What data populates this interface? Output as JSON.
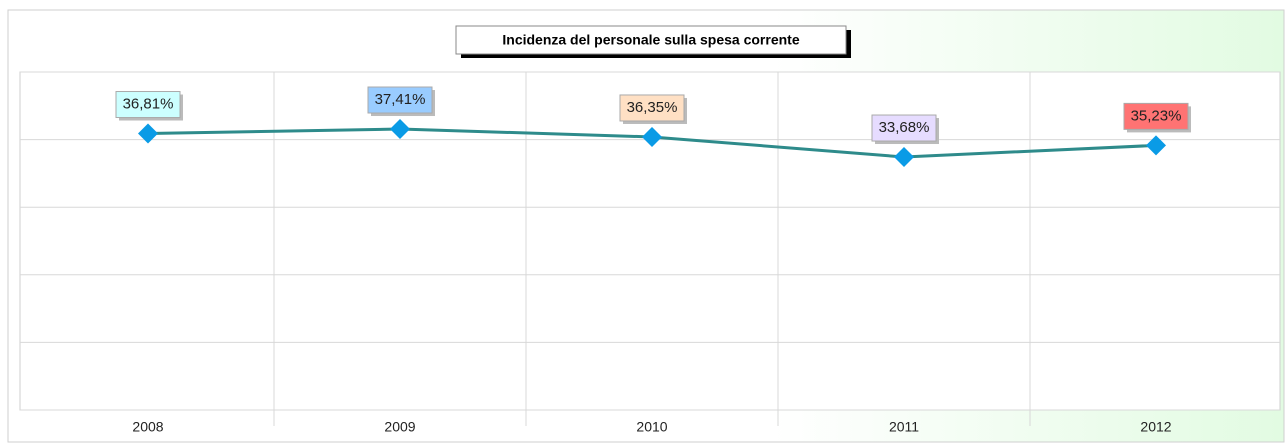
{
  "chart_data": {
    "type": "line",
    "title": "Incidenza del personale sulla spesa corrente",
    "categories": [
      "2008",
      "2009",
      "2010",
      "2011",
      "2012"
    ],
    "series": [
      {
        "color": "#2e8b8b",
        "marker_color": "#0a9be6",
        "values": [
          36.81,
          37.41,
          36.35,
          33.68,
          35.23
        ],
        "value_labels": [
          "36,81%",
          "37,41%",
          "36,35%",
          "33,68%",
          "35,23%"
        ],
        "label_colors": [
          "#ccffff",
          "#99ccff",
          "#ffe0c4",
          "#e6dcff",
          "#ff7373"
        ]
      }
    ],
    "ylim": [
      0,
      45
    ],
    "yticks": [
      0,
      9,
      18,
      27,
      36,
      45
    ],
    "grid": true
  }
}
